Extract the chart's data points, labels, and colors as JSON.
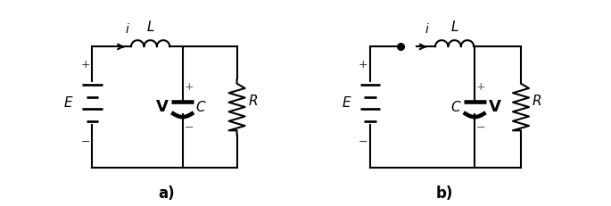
{
  "fig_width": 6.85,
  "fig_height": 2.31,
  "dpi": 100,
  "bg_color": "#ffffff",
  "line_color": "#000000",
  "line_width": 1.5,
  "label_a": "a)",
  "label_b": "b)"
}
